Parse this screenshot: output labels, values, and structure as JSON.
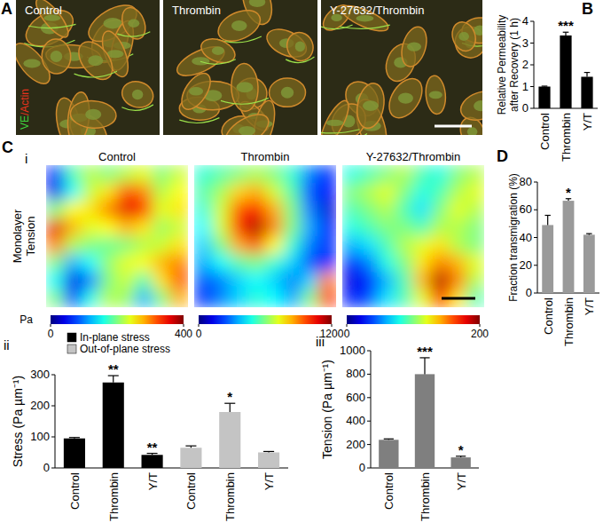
{
  "panel_A": {
    "letter": "A",
    "stain_label": [
      {
        "text": "VE",
        "color": "#3ed23e"
      },
      {
        "text": "/Actin",
        "color": "#e8331e"
      }
    ],
    "images": [
      {
        "label": "Control"
      },
      {
        "label": "Thrombin"
      },
      {
        "label": "Y-27632/Thrombin"
      }
    ]
  },
  "heatmaps": {
    "letter": "C",
    "panel": "i",
    "ylabel": [
      "Monolayer",
      "Tension"
    ],
    "colorbar_label": "Pa",
    "maps": [
      {
        "title": "Control",
        "colorbar": {
          "range": [
            0,
            400
          ],
          "ticks": [
            0,
            400
          ]
        },
        "cells": [
          [
            60,
            180,
            220,
            200,
            220,
            240,
            200,
            230
          ],
          [
            40,
            150,
            230,
            260,
            320,
            300,
            220,
            250
          ],
          [
            200,
            250,
            260,
            300,
            360,
            340,
            240,
            260
          ],
          [
            360,
            280,
            240,
            250,
            280,
            260,
            210,
            230
          ],
          [
            300,
            220,
            200,
            190,
            200,
            220,
            230,
            260
          ],
          [
            200,
            120,
            150,
            210,
            240,
            250,
            280,
            300
          ],
          [
            150,
            40,
            100,
            200,
            230,
            180,
            260,
            320
          ],
          [
            200,
            80,
            160,
            220,
            210,
            120,
            200,
            280
          ]
        ]
      },
      {
        "title": "Thrombin",
        "colorbar": {
          "range": [
            0,
            1200
          ],
          "ticks": [
            0,
            1200
          ]
        },
        "cells": [
          [
            500,
            550,
            600,
            650,
            600,
            500,
            300,
            200
          ],
          [
            550,
            650,
            800,
            850,
            700,
            550,
            250,
            150
          ],
          [
            500,
            700,
            950,
            1050,
            850,
            600,
            300,
            100
          ],
          [
            450,
            700,
            1000,
            1150,
            900,
            600,
            350,
            150
          ],
          [
            400,
            600,
            850,
            950,
            750,
            500,
            300,
            200
          ],
          [
            350,
            450,
            550,
            600,
            500,
            400,
            250,
            150
          ],
          [
            250,
            300,
            400,
            450,
            400,
            300,
            400,
            900
          ],
          [
            200,
            300,
            400,
            500,
            450,
            350,
            600,
            1000
          ]
        ]
      },
      {
        "title": "Y-27632/Thrombin",
        "colorbar": {
          "range": [
            0,
            200
          ],
          "ticks": [
            0,
            200
          ]
        },
        "cells": [
          [
            80,
            90,
            100,
            110,
            90,
            80,
            100,
            110
          ],
          [
            100,
            110,
            120,
            100,
            80,
            90,
            110,
            120
          ],
          [
            90,
            100,
            110,
            90,
            70,
            100,
            120,
            110
          ],
          [
            80,
            90,
            100,
            100,
            90,
            110,
            110,
            100
          ],
          [
            60,
            70,
            90,
            110,
            120,
            130,
            110,
            100
          ],
          [
            30,
            50,
            80,
            100,
            130,
            150,
            140,
            120
          ],
          [
            20,
            30,
            60,
            90,
            140,
            190,
            150,
            110
          ],
          [
            30,
            40,
            70,
            90,
            120,
            170,
            130,
            90
          ]
        ]
      }
    ]
  },
  "chart_data": [
    {
      "type": "bar",
      "panel": "B",
      "ylabel": [
        "Relative Permeability",
        "after Recovery (1 h)"
      ],
      "categories": [
        "Control",
        "Thrombin",
        "Y/T"
      ],
      "values": [
        1,
        3.35,
        1.45
      ],
      "errors": [
        0.02,
        0.15,
        0.2
      ],
      "significance": [
        null,
        "***",
        null
      ],
      "color": "#000000",
      "ylim": [
        0,
        4
      ],
      "yticks": [
        0,
        1,
        2,
        3,
        4
      ]
    },
    {
      "type": "bar",
      "panel": "ii",
      "ylabel": "Stress (Pa µm⁻¹)",
      "categories": [
        "Control",
        "Thrombin",
        "Y/T",
        "Control",
        "Thrombin",
        "Y/T"
      ],
      "series": [
        {
          "name": "In-plane stress",
          "color": "#000000",
          "values": [
            95,
            275,
            42,
            null,
            null,
            null
          ],
          "errors": [
            3,
            22,
            5,
            null,
            null,
            null
          ],
          "significance": [
            null,
            "**",
            "**",
            null,
            null,
            null
          ]
        },
        {
          "name": "Out-of-plane stress",
          "color": "#c4c4c4",
          "values": [
            null,
            null,
            null,
            65,
            180,
            50
          ],
          "errors": [
            null,
            null,
            null,
            6,
            28,
            3
          ],
          "significance": [
            null,
            null,
            null,
            null,
            "*",
            null
          ]
        }
      ],
      "legend": "upper left",
      "ylim": [
        0,
        300
      ],
      "yticks": [
        0,
        100,
        200,
        300
      ]
    },
    {
      "type": "bar",
      "panel": "iii",
      "ylabel": "Tension (Pa µm⁻¹)",
      "categories": [
        "Control",
        "Thrombin",
        "Y/T"
      ],
      "values": [
        240,
        800,
        90
      ],
      "errors": [
        8,
        140,
        10
      ],
      "significance": [
        null,
        "***",
        "*"
      ],
      "color": "#7f7f7f",
      "ylim": [
        0,
        1000
      ],
      "yticks": [
        0,
        200,
        400,
        600,
        800,
        1000
      ]
    },
    {
      "type": "bar",
      "panel": "D",
      "ylabel": "Fraction transmigration (%)",
      "categories": [
        "Control",
        "Thrombin",
        "Y/T"
      ],
      "values": [
        49,
        66.5,
        42
      ],
      "errors": [
        7,
        1.5,
        0.8
      ],
      "significance": [
        null,
        "*",
        null
      ],
      "color": "#9a9a9a",
      "ylim": [
        0,
        80
      ],
      "yticks": [
        0,
        20,
        40,
        60,
        80
      ]
    }
  ]
}
